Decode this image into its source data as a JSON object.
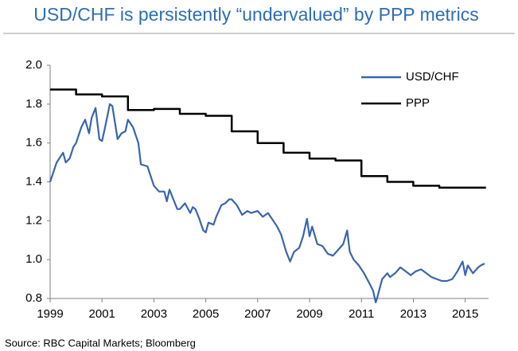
{
  "chart_data": {
    "type": "line",
    "title": "USD/CHF is persistently “undervalued” by PPP metrics",
    "source": "Source: RBC Capital Markets; Bloomberg",
    "xlim": [
      1999,
      2015.9
    ],
    "xticks": [
      1999,
      2001,
      2003,
      2005,
      2007,
      2009,
      2011,
      2013,
      2015
    ],
    "ylim": [
      0.8,
      2.0
    ],
    "yticks": [
      0.8,
      {
        "value": 1,
        "label": "1.0"
      },
      1.2,
      1.4,
      1.6,
      1.8,
      {
        "value": 2,
        "label": "2.0"
      }
    ],
    "legend": "upper right",
    "series": [
      {
        "name": "USD/CHF",
        "color": "#3a64b0",
        "x": [
          1999.0,
          1999.25,
          1999.4,
          1999.5,
          1999.6,
          1999.75,
          1999.9,
          2000.0,
          2000.2,
          2000.35,
          2000.5,
          2000.6,
          2000.75,
          2000.9,
          2001.0,
          2001.1,
          2001.3,
          2001.4,
          2001.6,
          2001.75,
          2001.9,
          2002.0,
          2002.2,
          2002.4,
          2002.5,
          2002.75,
          2003.0,
          2003.2,
          2003.4,
          2003.5,
          2003.6,
          2003.75,
          2003.9,
          2004.0,
          2004.2,
          2004.4,
          2004.5,
          2004.6,
          2004.75,
          2004.9,
          2005.0,
          2005.1,
          2005.3,
          2005.4,
          2005.6,
          2005.75,
          2005.9,
          2006.0,
          2006.2,
          2006.4,
          2006.6,
          2006.75,
          2007.0,
          2007.2,
          2007.4,
          2007.6,
          2007.75,
          2007.9,
          2008.1,
          2008.25,
          2008.4,
          2008.6,
          2008.75,
          2008.9,
          2009.0,
          2009.1,
          2009.3,
          2009.5,
          2009.7,
          2009.9,
          2010.1,
          2010.3,
          2010.45,
          2010.55,
          2010.7,
          2010.9,
          2011.1,
          2011.3,
          2011.45,
          2011.55,
          2011.6,
          2011.8,
          2012.0,
          2012.1,
          2012.3,
          2012.5,
          2012.7,
          2012.9,
          2013.1,
          2013.3,
          2013.5,
          2013.7,
          2013.9,
          2014.1,
          2014.3,
          2014.5,
          2014.7,
          2014.9,
          2015.0,
          2015.1,
          2015.3,
          2015.5,
          2015.6,
          2015.75
        ],
        "values": [
          1.4,
          1.5,
          1.53,
          1.55,
          1.5,
          1.52,
          1.58,
          1.6,
          1.68,
          1.72,
          1.65,
          1.73,
          1.78,
          1.62,
          1.61,
          1.67,
          1.8,
          1.79,
          1.62,
          1.65,
          1.66,
          1.72,
          1.68,
          1.6,
          1.49,
          1.48,
          1.38,
          1.35,
          1.35,
          1.3,
          1.36,
          1.31,
          1.26,
          1.26,
          1.29,
          1.24,
          1.27,
          1.26,
          1.21,
          1.15,
          1.14,
          1.19,
          1.18,
          1.22,
          1.28,
          1.29,
          1.31,
          1.31,
          1.28,
          1.23,
          1.25,
          1.24,
          1.25,
          1.22,
          1.24,
          1.2,
          1.17,
          1.13,
          1.04,
          0.99,
          1.04,
          1.06,
          1.12,
          1.21,
          1.12,
          1.17,
          1.08,
          1.07,
          1.03,
          1.02,
          1.05,
          1.08,
          1.15,
          1.04,
          1.0,
          0.97,
          0.93,
          0.88,
          0.84,
          0.78,
          0.8,
          0.9,
          0.93,
          0.91,
          0.93,
          0.96,
          0.94,
          0.92,
          0.94,
          0.95,
          0.93,
          0.91,
          0.9,
          0.89,
          0.89,
          0.9,
          0.94,
          0.99,
          0.92,
          0.97,
          0.93,
          0.96,
          0.97,
          0.98
        ]
      },
      {
        "name": "PPP",
        "color": "#000000",
        "x": [
          1999,
          2000,
          2000,
          2001,
          2001,
          2002,
          2002,
          2003,
          2003,
          2004,
          2004,
          2005,
          2005,
          2006,
          2006,
          2007,
          2007,
          2008,
          2008,
          2009,
          2009,
          2010,
          2010,
          2011,
          2011,
          2012,
          2012,
          2013,
          2013,
          2014,
          2014,
          2015.8
        ],
        "values": [
          1.875,
          1.875,
          1.85,
          1.85,
          1.84,
          1.84,
          1.77,
          1.77,
          1.775,
          1.775,
          1.75,
          1.75,
          1.74,
          1.74,
          1.66,
          1.66,
          1.6,
          1.6,
          1.55,
          1.55,
          1.52,
          1.52,
          1.51,
          1.51,
          1.43,
          1.43,
          1.4,
          1.4,
          1.38,
          1.38,
          1.37,
          1.37
        ]
      }
    ]
  }
}
